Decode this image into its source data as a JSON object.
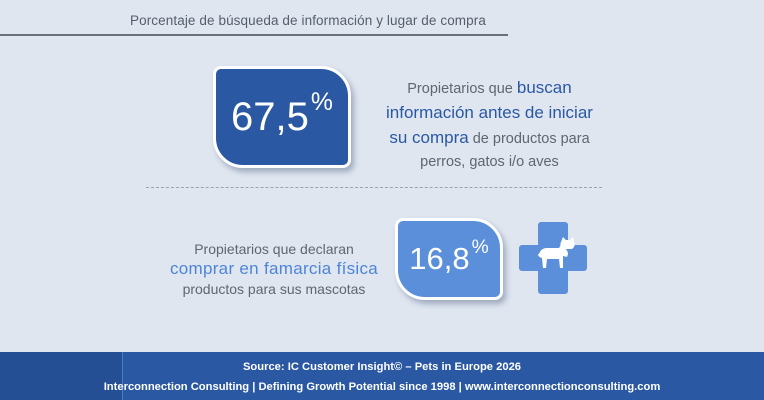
{
  "header": {
    "title": "Porcentaje de búsqueda de información y lugar de compra"
  },
  "stat1": {
    "number": "67,5",
    "percent_sign": "%",
    "lines": [
      {
        "pre": "Propietarios que ",
        "highlight": "buscan",
        "post": ""
      },
      {
        "pre": "",
        "highlight": "información antes de iniciar",
        "post": ""
      },
      {
        "pre": "",
        "highlight": "su compra",
        "post": " de productos para"
      },
      {
        "pre": "perros, gatos i/o aves",
        "highlight": "",
        "post": ""
      }
    ]
  },
  "stat2": {
    "number": "16,8",
    "percent_sign": "%",
    "line1": "Propietarios que declaran",
    "highlight": "comprar en famarcia física",
    "line3": "productos para sus mascotas"
  },
  "icon": {
    "name": "pharmacy-cross-pet-icon",
    "color": "#5b8fd9"
  },
  "footer": {
    "source": "Source: IC Customer Insight© – Pets in Europe 2026",
    "company": "Interconnection Consulting | Defining Growth Potential since 1998 | www.interconnectionconsulting.com"
  },
  "colors": {
    "primary": "#2a58a3",
    "secondary": "#5b8fd9",
    "background": "#dfe6f0"
  }
}
